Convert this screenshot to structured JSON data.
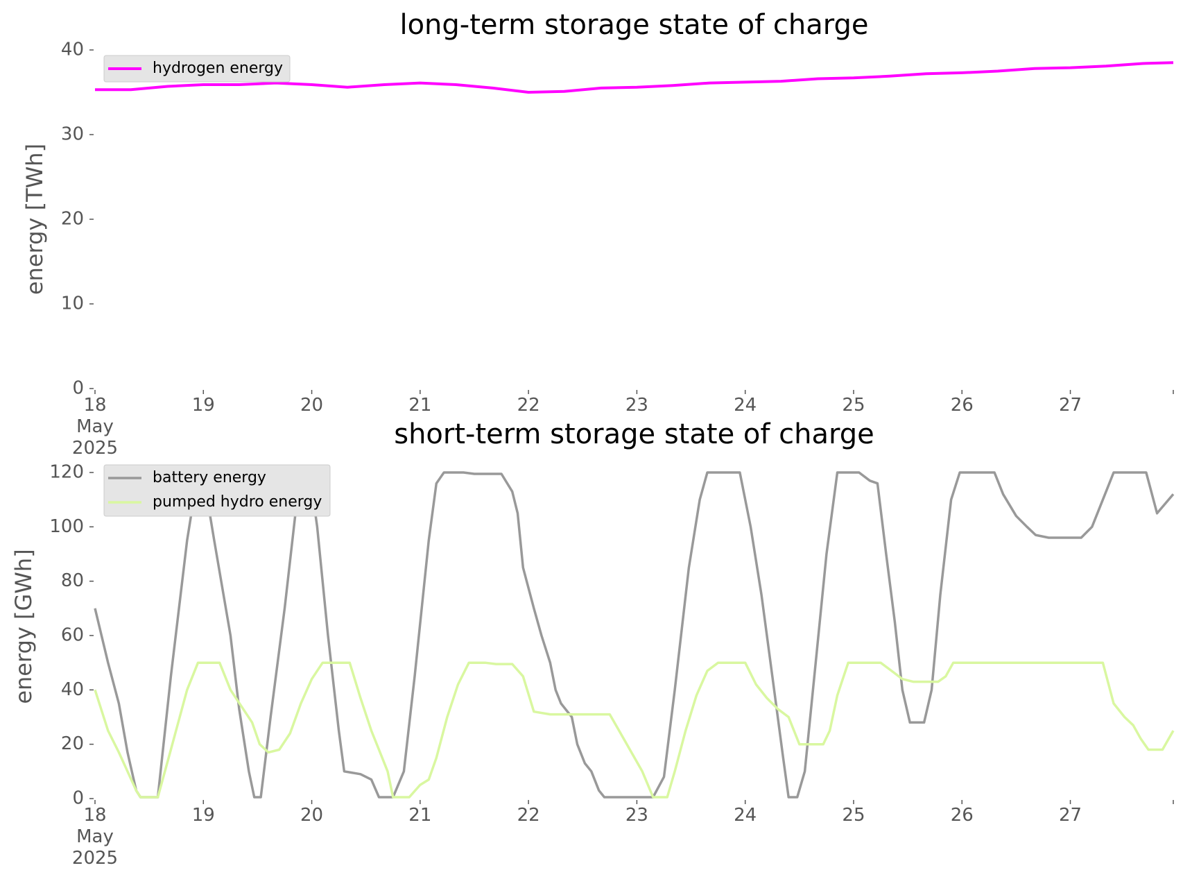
{
  "chart_data": [
    {
      "type": "line",
      "title": "long-term storage state of charge",
      "ylabel": "energy [TWh]",
      "ylim": [
        0,
        40
      ],
      "yticks": [
        0,
        10,
        20,
        30,
        40
      ],
      "xlim": [
        0,
        9.95
      ],
      "xtick_labels": [
        {
          "x": 0,
          "lines": [
            "18",
            "May",
            "2025"
          ]
        },
        {
          "x": 1,
          "lines": [
            "19"
          ]
        },
        {
          "x": 2,
          "lines": [
            "20"
          ]
        },
        {
          "x": 3,
          "lines": [
            "21"
          ]
        },
        {
          "x": 4,
          "lines": [
            "22"
          ]
        },
        {
          "x": 5,
          "lines": [
            "23"
          ]
        },
        {
          "x": 6,
          "lines": [
            "24"
          ]
        },
        {
          "x": 7,
          "lines": [
            "25"
          ]
        },
        {
          "x": 8,
          "lines": [
            "26"
          ]
        },
        {
          "x": 9,
          "lines": [
            "27"
          ]
        }
      ],
      "legend_position": "upper-left",
      "series": [
        {
          "name": "hydrogen energy",
          "color": "#ff00ff",
          "points": [
            [
              0,
              35.3
            ],
            [
              0.33,
              35.3
            ],
            [
              0.67,
              35.7
            ],
            [
              1,
              35.9
            ],
            [
              1.33,
              35.9
            ],
            [
              1.67,
              36.1
            ],
            [
              2,
              35.9
            ],
            [
              2.33,
              35.6
            ],
            [
              2.67,
              35.9
            ],
            [
              3,
              36.1
            ],
            [
              3.33,
              35.9
            ],
            [
              3.67,
              35.5
            ],
            [
              4,
              35.0
            ],
            [
              4.33,
              35.1
            ],
            [
              4.67,
              35.5
            ],
            [
              5,
              35.6
            ],
            [
              5.33,
              35.8
            ],
            [
              5.67,
              36.1
            ],
            [
              6,
              36.2
            ],
            [
              6.33,
              36.3
            ],
            [
              6.67,
              36.6
            ],
            [
              7,
              36.7
            ],
            [
              7.33,
              36.9
            ],
            [
              7.67,
              37.2
            ],
            [
              8,
              37.3
            ],
            [
              8.33,
              37.5
            ],
            [
              8.67,
              37.8
            ],
            [
              9,
              37.9
            ],
            [
              9.33,
              38.1
            ],
            [
              9.67,
              38.4
            ],
            [
              9.95,
              38.5
            ]
          ]
        }
      ]
    },
    {
      "type": "line",
      "title": "short-term storage state of charge",
      "ylabel": "energy [GWh]",
      "ylim": [
        0,
        120
      ],
      "yticks": [
        0,
        20,
        40,
        60,
        80,
        100,
        120
      ],
      "xlim": [
        0,
        9.95
      ],
      "xtick_labels": [
        {
          "x": 0,
          "lines": [
            "18",
            "May",
            "2025"
          ]
        },
        {
          "x": 1,
          "lines": [
            "19"
          ]
        },
        {
          "x": 2,
          "lines": [
            "20"
          ]
        },
        {
          "x": 3,
          "lines": [
            "21"
          ]
        },
        {
          "x": 4,
          "lines": [
            "22"
          ]
        },
        {
          "x": 5,
          "lines": [
            "23"
          ]
        },
        {
          "x": 6,
          "lines": [
            "24"
          ]
        },
        {
          "x": 7,
          "lines": [
            "25"
          ]
        },
        {
          "x": 8,
          "lines": [
            "26"
          ]
        },
        {
          "x": 9,
          "lines": [
            "27"
          ]
        }
      ],
      "legend_position": "upper-left",
      "series": [
        {
          "name": "battery energy",
          "color": "#999999",
          "points": [
            [
              0,
              70
            ],
            [
              0.12,
              50
            ],
            [
              0.22,
              35
            ],
            [
              0.3,
              17
            ],
            [
              0.38,
              3
            ],
            [
              0.42,
              0.5
            ],
            [
              0.55,
              0.5
            ],
            [
              0.58,
              0.5
            ],
            [
              0.7,
              45
            ],
            [
              0.85,
              95
            ],
            [
              0.95,
              120
            ],
            [
              1,
              120
            ],
            [
              0.95,
              120
            ],
            [
              1.0,
              119
            ],
            [
              1.1,
              95
            ],
            [
              1.25,
              60
            ],
            [
              1.33,
              33
            ],
            [
              1.42,
              10
            ],
            [
              1.47,
              0.5
            ],
            [
              1.53,
              0.5
            ],
            [
              1.62,
              30
            ],
            [
              1.75,
              70
            ],
            [
              1.85,
              105
            ],
            [
              1.92,
              120
            ],
            [
              1.98,
              120
            ],
            [
              2.05,
              100
            ],
            [
              2.15,
              60
            ],
            [
              2.25,
              25
            ],
            [
              2.3,
              10
            ],
            [
              2.45,
              9
            ],
            [
              2.55,
              7
            ],
            [
              2.62,
              0.5
            ],
            [
              2.75,
              0.5
            ],
            [
              2.85,
              10
            ],
            [
              2.95,
              45
            ],
            [
              3.08,
              95
            ],
            [
              3.15,
              116
            ],
            [
              3.22,
              120
            ],
            [
              3.4,
              120
            ],
            [
              3.5,
              119.5
            ],
            [
              3.75,
              119.5
            ],
            [
              3.85,
              113
            ],
            [
              3.9,
              105
            ],
            [
              3.95,
              85
            ],
            [
              4.05,
              70
            ],
            [
              4.12,
              60
            ],
            [
              4.2,
              50
            ],
            [
              4.25,
              40
            ],
            [
              4.3,
              35
            ],
            [
              4.4,
              30
            ],
            [
              4.45,
              20
            ],
            [
              4.52,
              13
            ],
            [
              4.58,
              10
            ],
            [
              4.65,
              3
            ],
            [
              4.7,
              0.5
            ],
            [
              4.85,
              0.5
            ],
            [
              5.05,
              0.5
            ],
            [
              5.15,
              0.5
            ],
            [
              5.25,
              8
            ],
            [
              5.35,
              40
            ],
            [
              5.48,
              85
            ],
            [
              5.58,
              110
            ],
            [
              5.65,
              120
            ],
            [
              5.75,
              120
            ],
            [
              5.95,
              120
            ],
            [
              6.05,
              100
            ],
            [
              6.15,
              75
            ],
            [
              6.25,
              45
            ],
            [
              6.35,
              15
            ],
            [
              6.4,
              0.5
            ],
            [
              6.48,
              0.5
            ],
            [
              6.55,
              10
            ],
            [
              6.65,
              50
            ],
            [
              6.75,
              90
            ],
            [
              6.85,
              120
            ],
            [
              6.95,
              120
            ],
            [
              7.05,
              120
            ],
            [
              7.15,
              117
            ],
            [
              7.22,
              116
            ],
            [
              7.3,
              90
            ],
            [
              7.38,
              65
            ],
            [
              7.45,
              40
            ],
            [
              7.52,
              28
            ],
            [
              7.65,
              28
            ],
            [
              7.72,
              40
            ],
            [
              7.8,
              75
            ],
            [
              7.9,
              110
            ],
            [
              7.98,
              120
            ],
            [
              8.08,
              120
            ],
            [
              8.3,
              120
            ],
            [
              8.38,
              112
            ],
            [
              8.5,
              104
            ],
            [
              8.6,
              100
            ],
            [
              8.68,
              97
            ],
            [
              8.8,
              96
            ],
            [
              9.0,
              96
            ],
            [
              9.1,
              96
            ],
            [
              9.2,
              100
            ],
            [
              9.3,
              110
            ],
            [
              9.4,
              120
            ],
            [
              9.5,
              120
            ],
            [
              9.7,
              120
            ],
            [
              9.8,
              105
            ],
            [
              9.95,
              112
            ]
          ]
        },
        {
          "name": "pumped hydro energy",
          "color": "#d9f7a0",
          "points": [
            [
              0,
              40
            ],
            [
              0.12,
              25
            ],
            [
              0.22,
              17
            ],
            [
              0.3,
              10
            ],
            [
              0.38,
              3
            ],
            [
              0.42,
              0.5
            ],
            [
              0.58,
              0.5
            ],
            [
              0.7,
              18
            ],
            [
              0.85,
              40
            ],
            [
              0.95,
              50
            ],
            [
              1.05,
              50
            ],
            [
              1.15,
              50
            ],
            [
              1.25,
              40
            ],
            [
              1.35,
              34
            ],
            [
              1.45,
              28
            ],
            [
              1.52,
              20
            ],
            [
              1.6,
              17
            ],
            [
              1.7,
              18
            ],
            [
              1.8,
              24
            ],
            [
              1.9,
              35
            ],
            [
              2.0,
              44
            ],
            [
              2.1,
              50
            ],
            [
              2.2,
              50
            ],
            [
              2.35,
              50
            ],
            [
              2.45,
              37
            ],
            [
              2.55,
              25
            ],
            [
              2.62,
              18
            ],
            [
              2.7,
              10
            ],
            [
              2.75,
              0.5
            ],
            [
              2.9,
              0.5
            ],
            [
              3.0,
              5
            ],
            [
              3.08,
              7
            ],
            [
              3.15,
              15
            ],
            [
              3.25,
              30
            ],
            [
              3.35,
              42
            ],
            [
              3.45,
              50
            ],
            [
              3.6,
              50
            ],
            [
              3.7,
              49.5
            ],
            [
              3.85,
              49.5
            ],
            [
              3.95,
              45
            ],
            [
              4.05,
              32
            ],
            [
              4.2,
              31
            ],
            [
              4.55,
              31
            ],
            [
              4.65,
              31
            ],
            [
              4.75,
              31
            ],
            [
              4.85,
              24
            ],
            [
              4.95,
              17
            ],
            [
              5.05,
              10
            ],
            [
              5.15,
              0.5
            ],
            [
              5.28,
              0.5
            ],
            [
              5.35,
              10
            ],
            [
              5.45,
              25
            ],
            [
              5.55,
              38
            ],
            [
              5.65,
              47
            ],
            [
              5.75,
              50
            ],
            [
              5.9,
              50
            ],
            [
              6.0,
              50
            ],
            [
              6.1,
              42
            ],
            [
              6.2,
              37
            ],
            [
              6.3,
              33
            ],
            [
              6.4,
              30
            ],
            [
              6.5,
              20
            ],
            [
              6.58,
              20
            ],
            [
              6.72,
              20
            ],
            [
              6.78,
              25
            ],
            [
              6.85,
              38
            ],
            [
              6.95,
              50
            ],
            [
              7.05,
              50
            ],
            [
              7.25,
              50
            ],
            [
              7.35,
              47
            ],
            [
              7.45,
              44
            ],
            [
              7.55,
              43
            ],
            [
              7.7,
              43
            ],
            [
              7.78,
              43
            ],
            [
              7.85,
              45
            ],
            [
              7.92,
              50
            ],
            [
              8.1,
              50
            ],
            [
              8.5,
              50
            ],
            [
              8.9,
              50
            ],
            [
              9.0,
              50
            ],
            [
              9.2,
              50
            ],
            [
              9.3,
              50
            ],
            [
              9.4,
              35
            ],
            [
              9.5,
              30
            ],
            [
              9.58,
              27
            ],
            [
              9.65,
              22
            ],
            [
              9.72,
              18
            ],
            [
              9.8,
              18
            ],
            [
              9.85,
              18
            ],
            [
              9.95,
              25
            ]
          ]
        }
      ]
    }
  ]
}
